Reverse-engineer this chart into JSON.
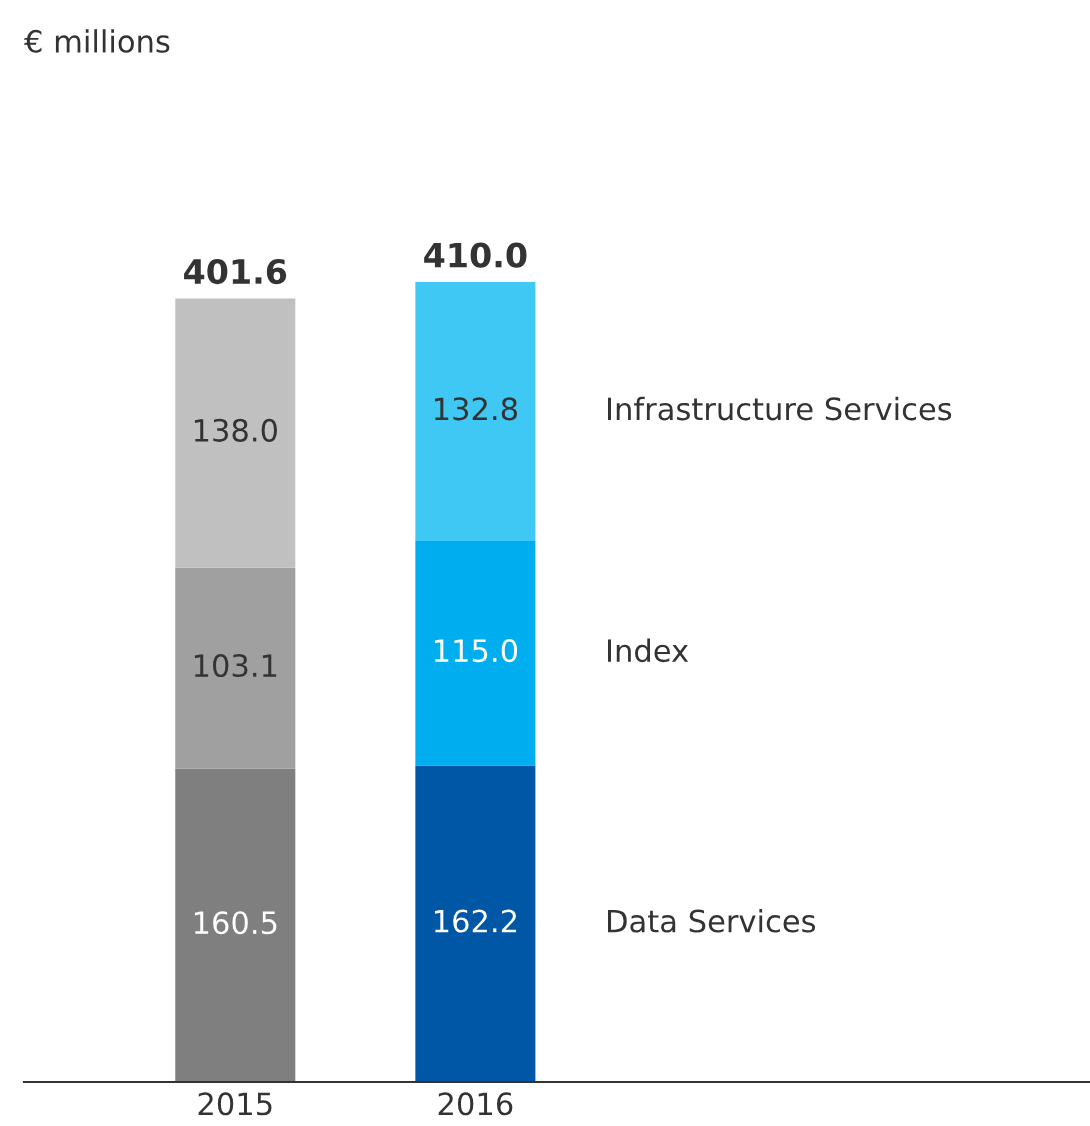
{
  "chart_data": {
    "type": "bar",
    "stacked": true,
    "annotations": [
      "€ millions"
    ],
    "categories": [
      "2015",
      "2016"
    ],
    "series": [
      {
        "name": "Data Services",
        "colors": [
          "#7f7f7f",
          "#0057a6"
        ],
        "values": [
          160.5,
          162.2
        ],
        "value_labels": [
          "160.5",
          "162.2"
        ]
      },
      {
        "name": "Index",
        "colors": [
          "#a0a0a0",
          "#00aeef"
        ],
        "values": [
          103.1,
          115.0
        ],
        "value_labels": [
          "103.1",
          "115.0"
        ]
      },
      {
        "name": "Infrastructure Services",
        "colors": [
          "#c0c0c0",
          "#40c8f4"
        ],
        "values": [
          138.0,
          132.8
        ],
        "value_labels": [
          "138.0",
          "132.8"
        ]
      }
    ],
    "totals": [
      "401.6",
      "410.0"
    ],
    "legend": false,
    "grid": false
  }
}
